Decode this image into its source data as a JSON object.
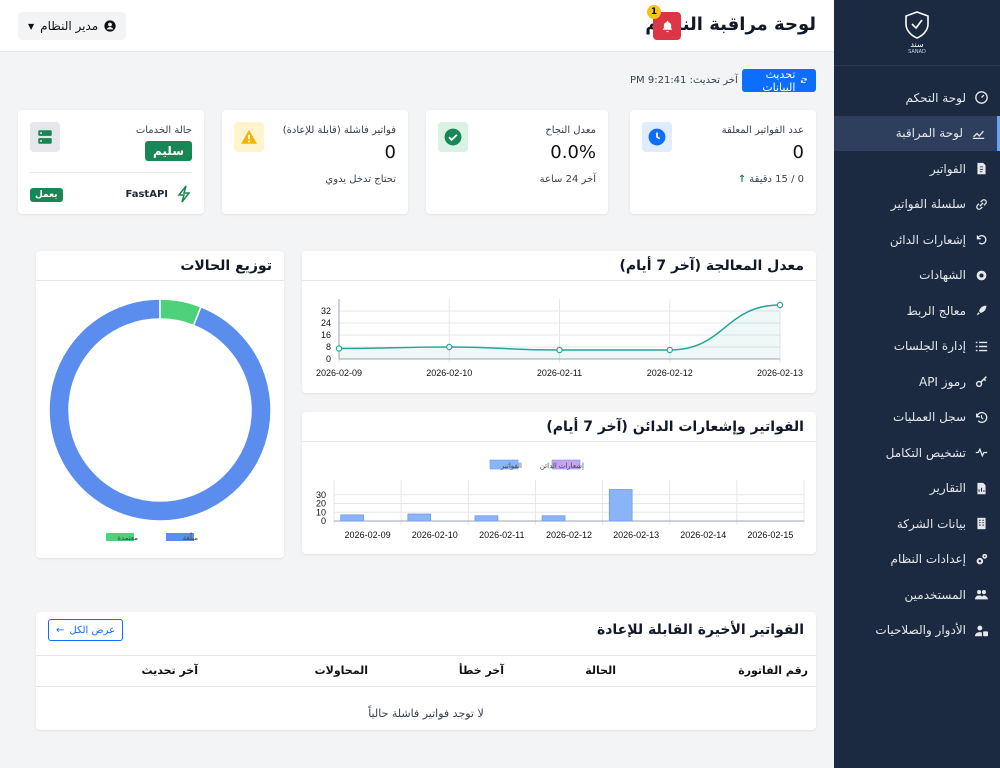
{
  "brand": {
    "logo_text": "سند",
    "logo_subtext": "SANAD"
  },
  "header": {
    "title": "لوحة مراقبة النظام",
    "alert_count": "1",
    "user_label": "مدير النظام"
  },
  "sidebar": {
    "items": [
      {
        "label": "لوحة التحكم",
        "icon": "gauge-icon",
        "active": false
      },
      {
        "label": "لوحة المراقبة",
        "icon": "chart-line-icon",
        "active": true
      },
      {
        "label": "الفواتير",
        "icon": "invoice-icon",
        "active": false
      },
      {
        "label": "سلسلة الفواتير",
        "icon": "link-icon",
        "active": false
      },
      {
        "label": "إشعارات الدائن",
        "icon": "undo-icon",
        "active": false
      },
      {
        "label": "الشهادات",
        "icon": "certificate-icon",
        "active": false
      },
      {
        "label": "معالج الربط",
        "icon": "rocket-icon",
        "active": false
      },
      {
        "label": "إدارة الجلسات",
        "icon": "list-icon",
        "active": false
      },
      {
        "label": "رموز API",
        "icon": "key-icon",
        "active": false
      },
      {
        "label": "سجل العمليات",
        "icon": "history-icon",
        "active": false
      },
      {
        "label": "تشخيص التكامل",
        "icon": "heartbeat-icon",
        "active": false
      },
      {
        "label": "التقارير",
        "icon": "report-icon",
        "active": false
      },
      {
        "label": "بيانات الشركة",
        "icon": "building-icon",
        "active": false
      },
      {
        "label": "إعدادات النظام",
        "icon": "cogs-icon",
        "active": false
      },
      {
        "label": "المستخدمين",
        "icon": "users-icon",
        "active": false
      },
      {
        "label": "الأدوار والصلاحيات",
        "icon": "user-lock-icon",
        "active": false
      }
    ]
  },
  "refresh": {
    "button_label": "تحديث البيانات",
    "last_update": "آخر تحديث: 9:21:41 PM"
  },
  "stats": {
    "pending": {
      "label": "عدد الفواتير المعلقة",
      "value": "0",
      "sub": "0 / 15 دقيقة"
    },
    "success": {
      "label": "معدل النجاح",
      "value": "0.0%",
      "sub": "آخر 24 ساعة"
    },
    "failed": {
      "label": "فواتير فاشلة (قابلة للإعادة)",
      "value": "0",
      "sub": "تحتاج تدخل يدوي"
    },
    "services": {
      "label": "حالة الخدمات",
      "status": "سليم",
      "service_name": "FastAPI",
      "service_status": "يعمل"
    }
  },
  "colors": {
    "primary": "#0d6efd",
    "sidebar_bg": "#1b2a41",
    "success": "#198754",
    "danger": "#dc3545",
    "warning": "#f5c518",
    "line": "#26a69a",
    "bar_blue": "#8ab4f8",
    "bar_purple": "#c8a2f0",
    "donut_blue": "#5b8def",
    "donut_green": "#4cd37a"
  },
  "panels": {
    "processing": {
      "title": "معدل المعالجة (آخر 7 أيام)"
    },
    "invoices_credit": {
      "title": "الفواتير وإشعارات الدائن (آخر 7 أيام)"
    },
    "distribution": {
      "title": "توزيع الحالات"
    },
    "recent_failed": {
      "title": "الفواتير الأخيرة القابلة للإعادة",
      "view_all": "عرض الكل",
      "columns": [
        "رقم الفاتورة",
        "الحالة",
        "آخر خطأ",
        "المحاولات",
        "آخر تحديث"
      ],
      "empty": "لا توجد فواتير فاشلة حالياً"
    }
  },
  "chart_data": [
    {
      "type": "area",
      "x": [
        "2026-02-09",
        "2026-02-10",
        "2026-02-11",
        "2026-02-12",
        "2026-02-13"
      ],
      "series": [
        {
          "values": [
            7,
            8,
            6,
            6,
            36
          ]
        }
      ],
      "yticks": [
        0,
        8,
        16,
        24,
        32
      ],
      "ylim": [
        0,
        40
      ],
      "grid": true
    },
    {
      "type": "bar",
      "categories": [
        "2026-02-09",
        "2026-02-10",
        "2026-02-11",
        "2026-02-12",
        "2026-02-13",
        "2026-02-14",
        "2026-02-15"
      ],
      "series": [
        {
          "name": "الفواتير",
          "values": [
            7,
            8,
            6,
            6,
            36,
            0,
            0
          ]
        },
        {
          "name": "إشعارات الدائن",
          "values": [
            0,
            0,
            0,
            0,
            0,
            0,
            0
          ]
        }
      ],
      "yticks": [
        0,
        10,
        20,
        30
      ],
      "ylim": [
        0,
        40
      ],
      "legend": "top",
      "grid": true
    },
    {
      "type": "pie",
      "categories": [
        "مبلّغة",
        "معتمدة"
      ],
      "values": [
        94,
        6
      ],
      "legend": "bottom"
    }
  ]
}
